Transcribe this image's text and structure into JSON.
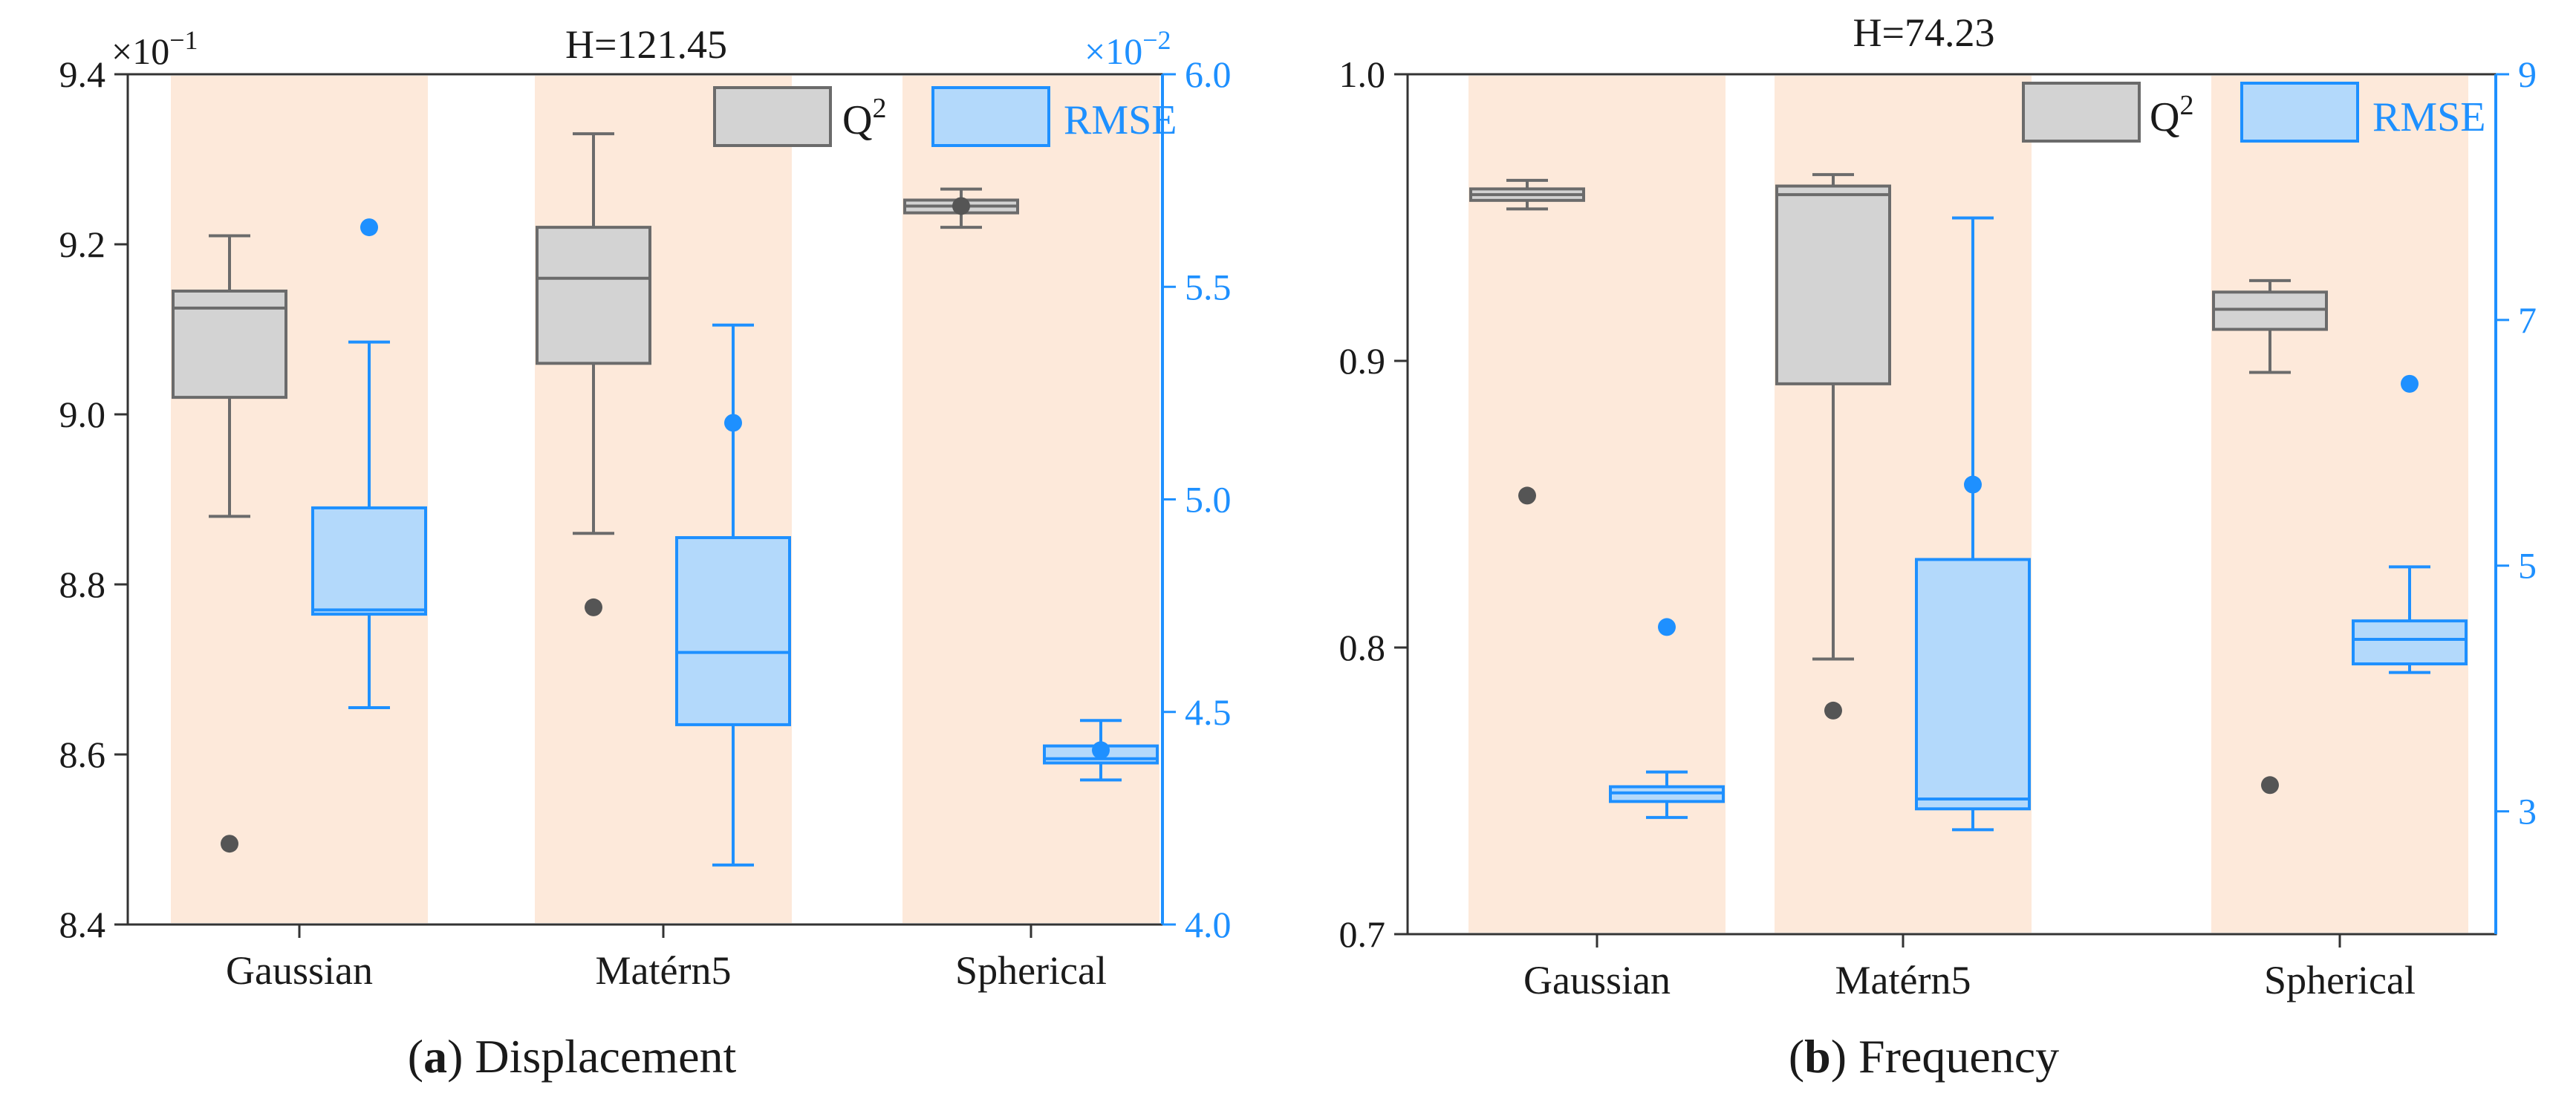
{
  "chart_data": [
    {
      "type": "box",
      "title": "H=121.45",
      "caption_letter": "a",
      "caption_text": "Displacement",
      "categories": [
        "Gaussian",
        "Matérn5",
        "Spherical"
      ],
      "left_axis": {
        "label": "",
        "lim": [
          8.4,
          9.4
        ],
        "ticks": [
          "8.4",
          "8.6",
          "8.8",
          "9.0",
          "9.2",
          "9.4"
        ],
        "multiplier": "×10",
        "exponent": "−1"
      },
      "right_axis": {
        "label": "",
        "lim": [
          4.0,
          6.0
        ],
        "ticks": [
          "4.0",
          "4.5",
          "5.0",
          "5.5",
          "6.0"
        ],
        "multiplier": "×10",
        "exponent": "−2"
      },
      "legend": [
        "Q",
        "RMSE"
      ],
      "legend_superscript": "2",
      "series": [
        {
          "name": "Q2",
          "axis": "left",
          "color": "#6b6b6b",
          "fill": "#d3d3d3",
          "boxes": [
            {
              "whislo": 8.88,
              "q1": 9.02,
              "med": 9.125,
              "q3": 9.145,
              "whishi": 9.21,
              "fliers": [
                8.495
              ]
            },
            {
              "whislo": 8.86,
              "q1": 9.06,
              "med": 9.16,
              "q3": 9.22,
              "whishi": 9.33,
              "fliers": [
                8.773
              ]
            },
            {
              "whislo": 9.22,
              "q1": 9.237,
              "med": 9.245,
              "q3": 9.252,
              "whishi": 9.265,
              "fliers": [
                9.245
              ]
            }
          ]
        },
        {
          "name": "RMSE",
          "axis": "right",
          "color": "#1e90ff",
          "fill": "#b3d9fb",
          "boxes": [
            {
              "whislo": 4.51,
              "q1": 4.73,
              "med": 4.74,
              "q3": 4.98,
              "whishi": 5.37,
              "fliers": [
                5.64
              ]
            },
            {
              "whislo": 4.14,
              "q1": 4.47,
              "med": 4.64,
              "q3": 4.91,
              "whishi": 5.41,
              "fliers": [
                5.18
              ]
            },
            {
              "whislo": 4.34,
              "q1": 4.38,
              "med": 4.39,
              "q3": 4.42,
              "whishi": 4.48,
              "fliers": [
                4.41
              ]
            }
          ]
        }
      ]
    },
    {
      "type": "box",
      "title": "H=74.23",
      "caption_letter": "b",
      "caption_text": "Frequency",
      "categories": [
        "Gaussian",
        "Matérn5",
        "Spherical"
      ],
      "left_axis": {
        "label": "",
        "lim": [
          0.7,
          1.0
        ],
        "ticks": [
          "0.7",
          "0.8",
          "0.9",
          "1.0"
        ],
        "multiplier": "",
        "exponent": ""
      },
      "right_axis": {
        "label": "",
        "lim": [
          2,
          9
        ],
        "ticks": [
          "3",
          "5",
          "7",
          "9"
        ],
        "multiplier": "",
        "exponent": ""
      },
      "legend": [
        "Q",
        "RMSE"
      ],
      "legend_superscript": "2",
      "series": [
        {
          "name": "Q2",
          "axis": "left",
          "color": "#6b6b6b",
          "fill": "#d3d3d3",
          "boxes": [
            {
              "whislo": 0.953,
              "q1": 0.956,
              "med": 0.958,
              "q3": 0.96,
              "whishi": 0.963,
              "fliers": [
                0.853
              ]
            },
            {
              "whislo": 0.796,
              "q1": 0.892,
              "med": 0.958,
              "q3": 0.961,
              "whishi": 0.965,
              "fliers": [
                0.778
              ]
            },
            {
              "whislo": 0.896,
              "q1": 0.911,
              "med": 0.918,
              "q3": 0.924,
              "whishi": 0.928,
              "fliers": [
                0.752
              ]
            }
          ]
        },
        {
          "name": "RMSE",
          "axis": "right",
          "color": "#1e90ff",
          "fill": "#b3d9fb",
          "boxes": [
            {
              "whislo": 2.95,
              "q1": 3.08,
              "med": 3.15,
              "q3": 3.2,
              "whishi": 3.32,
              "fliers": [
                4.5
              ]
            },
            {
              "whislo": 2.85,
              "q1": 3.02,
              "med": 3.1,
              "q3": 5.05,
              "whishi": 7.83,
              "fliers": [
                5.66
              ]
            },
            {
              "whislo": 4.13,
              "q1": 4.2,
              "med": 4.4,
              "q3": 4.55,
              "whishi": 4.99,
              "fliers": [
                6.48
              ]
            }
          ]
        }
      ]
    }
  ]
}
